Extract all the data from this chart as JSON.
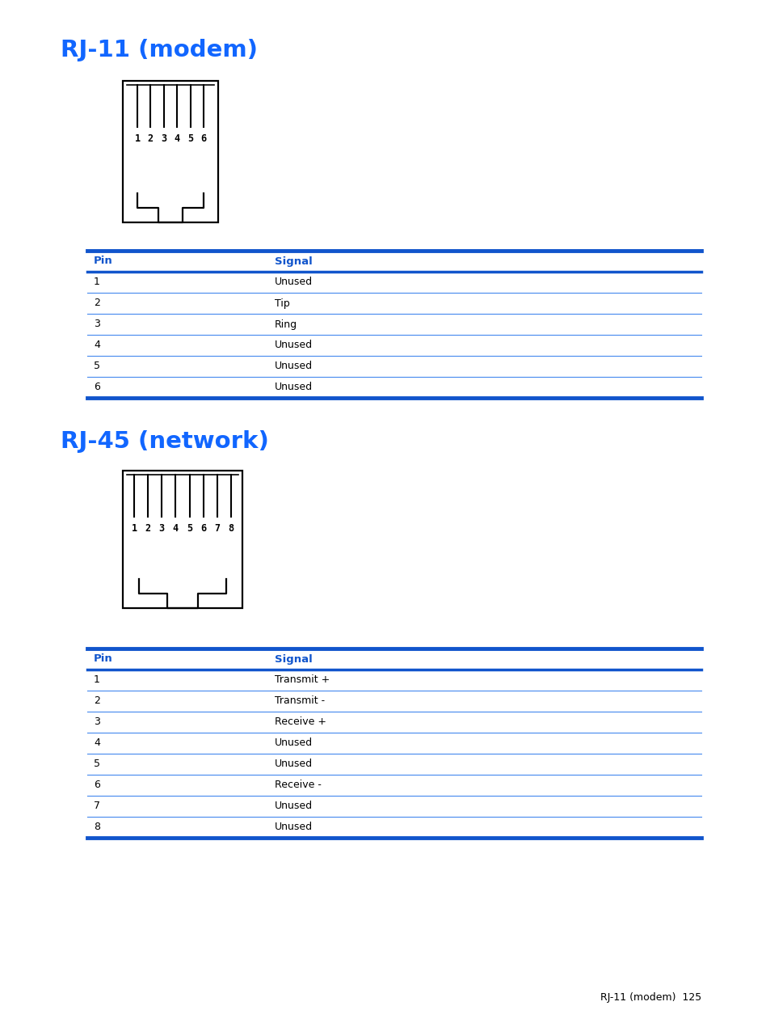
{
  "title1": "RJ-11 (modem)",
  "title2": "RJ-45 (network)",
  "title_color": "#1166FF",
  "table_header_color": "#1155CC",
  "table_line_color": "#4488EE",
  "table_border_color": "#1155CC",
  "rj11_pins": [
    "1",
    "2",
    "3",
    "4",
    "5",
    "6"
  ],
  "rj11_signals": [
    "Unused",
    "Tip",
    "Ring",
    "Unused",
    "Unused",
    "Unused"
  ],
  "rj45_pins": [
    "1",
    "2",
    "3",
    "4",
    "5",
    "6",
    "7",
    "8"
  ],
  "rj45_signals": [
    "Transmit +",
    "Transmit -",
    "Receive +",
    "Unused",
    "Unused",
    "Receive -",
    "Unused",
    "Unused"
  ],
  "col_header_pin": "Pin",
  "col_header_signal": "Signal",
  "footer_text": "RJ-11 (modem)  125",
  "bg_color": "#FFFFFF",
  "text_color": "#000000",
  "connector_color": "#000000"
}
